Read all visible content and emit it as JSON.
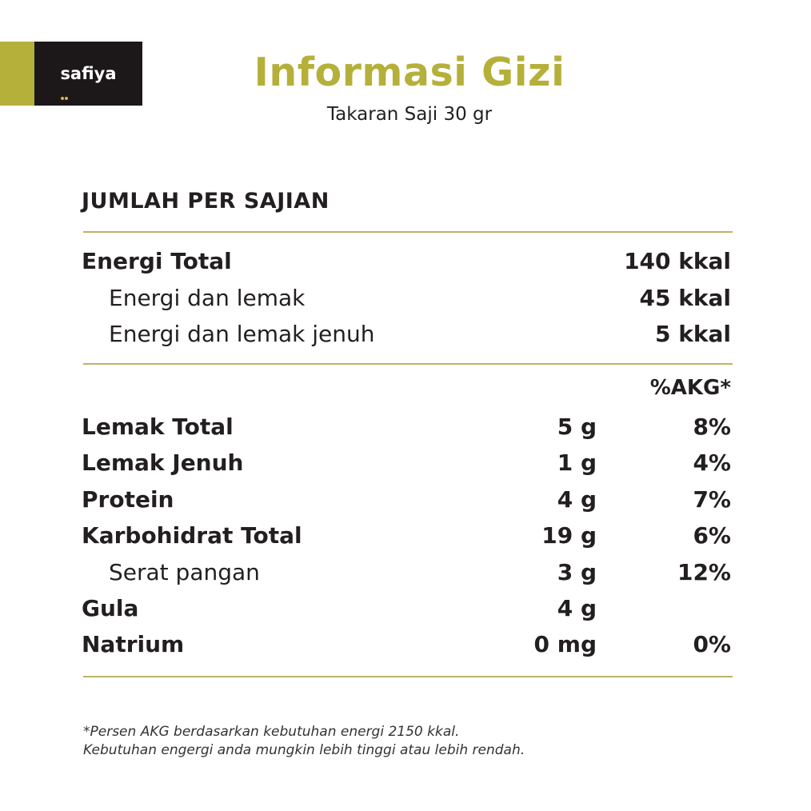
{
  "brand": {
    "logo_text": "safiya",
    "colors": {
      "olive": "#b5b03a",
      "black": "#1c1718",
      "dots": "#d9b24a"
    }
  },
  "header": {
    "title": "Informasi Gizi",
    "subtitle": "Takaran Saji 30 gr"
  },
  "section": {
    "heading": "JUMLAH PER SAJIAN"
  },
  "energy": {
    "rows": [
      {
        "label": "Energi Total",
        "value": "140 kkal"
      },
      {
        "label": "Energi dan lemak",
        "value": "45 kkal"
      },
      {
        "label": "Energi dan lemak jenuh",
        "value": "5 kkal"
      }
    ]
  },
  "nutrients": {
    "akg_header": "%AKG*",
    "rows": [
      {
        "label": "Lemak Total",
        "amount": "5 g",
        "akg": "8%"
      },
      {
        "label": "Lemak Jenuh",
        "amount": "1 g",
        "akg": "4%"
      },
      {
        "label": "Protein",
        "amount": "4 g",
        "akg": "7%"
      },
      {
        "label": "Karbohidrat Total",
        "amount": "19 g",
        "akg": "6%"
      },
      {
        "label": "Serat pangan",
        "amount": "3 g",
        "akg": "12%"
      },
      {
        "label": "Gula",
        "amount": "4 g",
        "akg": ""
      },
      {
        "label": "Natrium",
        "amount": "0 mg",
        "akg": "0%"
      }
    ]
  },
  "footnote": {
    "line1": "*Persen AKG berdasarkan kebutuhan energi 2150 kkal.",
    "line2": "Kebutuhan engergi anda mungkin lebih tinggi atau lebih rendah."
  },
  "colors": {
    "accent": "#b5b03a",
    "rule": "#b9b56a",
    "text": "#231f20"
  }
}
